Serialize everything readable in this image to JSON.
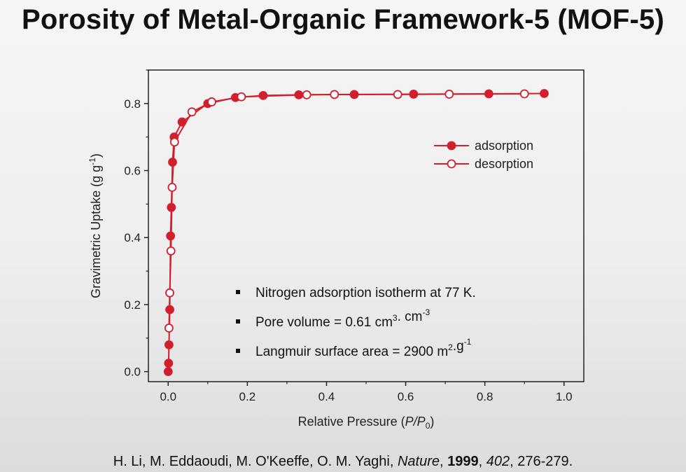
{
  "slide": {
    "title": "Porosity of Metal-Organic Framework-5 (MOF-5)"
  },
  "citation": {
    "authors": "H. Li, M. Eddaoudi, M. O'Keeffe, O. M. Yaghi, ",
    "journal": "Nature",
    "year": "1999",
    "volume": "402",
    "pages": "276-279."
  },
  "chart_data": {
    "type": "scatter",
    "xlabel": "Relative Pressure (P/P0)",
    "ylabel": "Gravimetric Uptake (g g-1)",
    "xlim": [
      -0.05,
      1.05
    ],
    "ylim": [
      -0.03,
      0.9
    ],
    "xticks": [
      "0.0",
      "0.2",
      "0.4",
      "0.6",
      "0.8",
      "1.0"
    ],
    "yticks": [
      "0.0",
      "0.2",
      "0.4",
      "0.6",
      "0.8"
    ],
    "legend_position": "top-right",
    "series_color": "#d21f2e",
    "series": [
      {
        "name": "adsorption",
        "marker": "filled-circle",
        "x": [
          0.0,
          0.001,
          0.002,
          0.004,
          0.006,
          0.008,
          0.011,
          0.015,
          0.035,
          0.1,
          0.17,
          0.24,
          0.33,
          0.47,
          0.62,
          0.81,
          0.95
        ],
        "y": [
          0.0,
          0.025,
          0.08,
          0.185,
          0.405,
          0.49,
          0.625,
          0.7,
          0.745,
          0.8,
          0.818,
          0.824,
          0.826,
          0.827,
          0.828,
          0.829,
          0.83
        ]
      },
      {
        "name": "desorption",
        "marker": "open-circle",
        "x": [
          0.002,
          0.004,
          0.007,
          0.01,
          0.016,
          0.06,
          0.11,
          0.185,
          0.35,
          0.42,
          0.58,
          0.71,
          0.9
        ],
        "y": [
          0.13,
          0.235,
          0.36,
          0.55,
          0.685,
          0.775,
          0.805,
          0.82,
          0.826,
          0.827,
          0.827,
          0.828,
          0.829
        ]
      }
    ],
    "annotations": [
      {
        "text": "Nitrogen adsorption isotherm at 77 K."
      },
      {
        "text": "Pore volume = 0.61 cm3. cm-3"
      },
      {
        "text": "Langmuir surface area = 2900 m2.g-1"
      }
    ]
  }
}
